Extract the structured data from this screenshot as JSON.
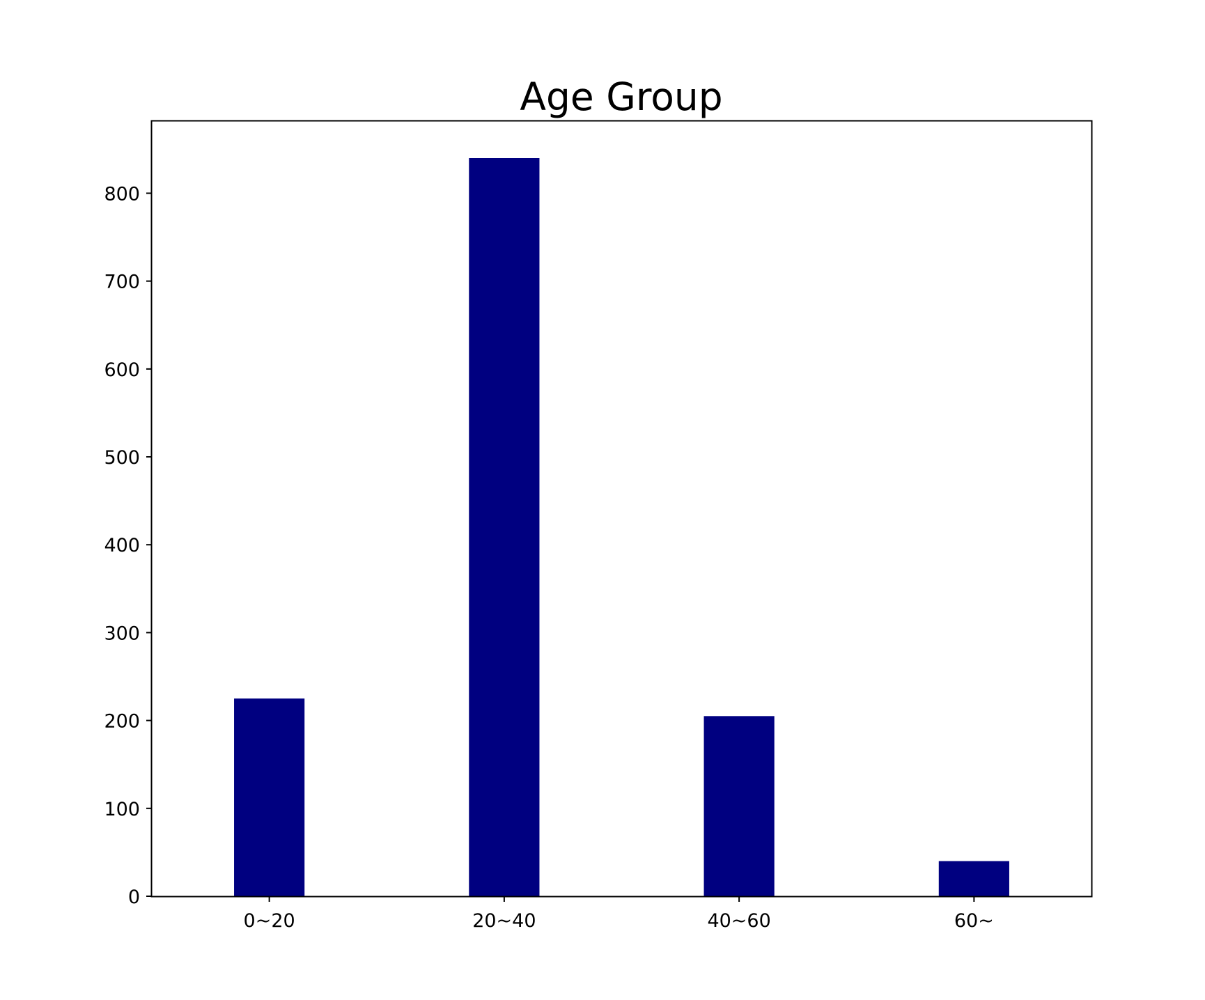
{
  "chart_data": {
    "type": "bar",
    "title": "Age Group",
    "xlabel": "",
    "ylabel": "",
    "categories": [
      "0~20",
      "20~40",
      "40~60",
      "60~"
    ],
    "values": [
      225,
      840,
      205,
      40
    ],
    "ylim": [
      0,
      882
    ],
    "yticks": [
      0,
      100,
      200,
      300,
      400,
      500,
      600,
      700,
      800
    ],
    "grid": false,
    "legend": "none",
    "colors": {
      "bar": "#000080",
      "axes": "#000000",
      "background": "#ffffff"
    }
  }
}
